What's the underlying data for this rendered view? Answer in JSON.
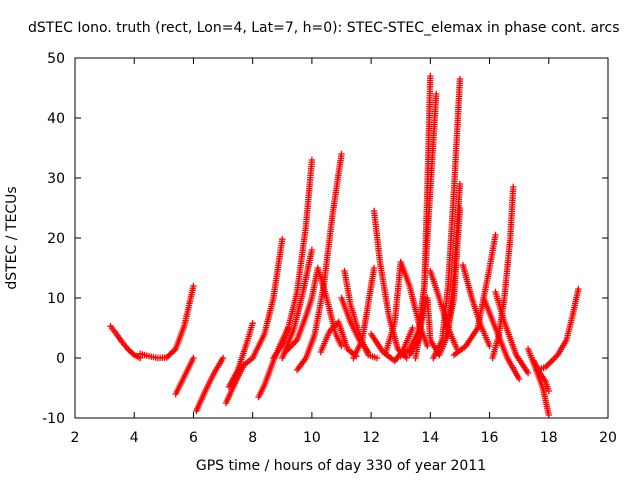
{
  "chart_data": {
    "type": "scatter",
    "title": "dSTEC Iono. truth (rect, Lon=4, Lat=7, h=0): STEC-STEC_elemax in phase cont. arcs",
    "xlabel": "GPS time / hours of day 330 of year 2011",
    "ylabel": "dSTEC  / TECUs",
    "xlim": [
      2,
      20
    ],
    "ylim": [
      -10,
      50
    ],
    "xticks": [
      2,
      4,
      6,
      8,
      10,
      12,
      14,
      16,
      18,
      20
    ],
    "yticks": [
      -10,
      0,
      10,
      20,
      30,
      40,
      50
    ],
    "grid": false,
    "marker": "+",
    "color": "#ff0000",
    "series": [
      {
        "points": [
          [
            3.2,
            5.3
          ],
          [
            3.4,
            4.0
          ],
          [
            3.6,
            2.6
          ],
          [
            3.8,
            1.4
          ],
          [
            4.0,
            0.5
          ],
          [
            4.2,
            0.0
          ]
        ]
      },
      {
        "points": [
          [
            4.2,
            0.7
          ],
          [
            4.5,
            0.3
          ],
          [
            4.8,
            0.0
          ],
          [
            5.1,
            0.1
          ],
          [
            5.4,
            1.5
          ],
          [
            5.7,
            5.5
          ],
          [
            6.0,
            12.0
          ]
        ]
      },
      {
        "points": [
          [
            5.4,
            -6.0
          ],
          [
            5.6,
            -4.0
          ],
          [
            5.8,
            -2.0
          ],
          [
            6.0,
            0.0
          ]
        ]
      },
      {
        "points": [
          [
            6.1,
            -8.8
          ],
          [
            6.4,
            -5.5
          ],
          [
            6.7,
            -2.5
          ],
          [
            7.0,
            0.0
          ]
        ]
      },
      {
        "points": [
          [
            7.1,
            -7.5
          ],
          [
            7.4,
            -4.2
          ],
          [
            7.7,
            -1.2
          ],
          [
            8.0,
            0.0
          ]
        ]
      },
      {
        "points": [
          [
            7.2,
            -4.8
          ],
          [
            7.5,
            -2.0
          ],
          [
            7.8,
            2.5
          ],
          [
            8.0,
            5.8
          ]
        ]
      },
      {
        "points": [
          [
            8.2,
            -6.5
          ],
          [
            8.4,
            -4.5
          ],
          [
            8.7,
            -0.5
          ],
          [
            9.0,
            3.0
          ],
          [
            9.2,
            5.0
          ]
        ]
      },
      {
        "points": [
          [
            8.0,
            0.0
          ],
          [
            8.4,
            4.0
          ],
          [
            8.7,
            10.0
          ],
          [
            9.0,
            19.8
          ]
        ]
      },
      {
        "points": [
          [
            8.7,
            0.0
          ],
          [
            9.1,
            3.0
          ],
          [
            9.5,
            11.0
          ],
          [
            9.8,
            22.0
          ],
          [
            10.0,
            33.0
          ]
        ]
      },
      {
        "points": [
          [
            9.0,
            0.0
          ],
          [
            9.4,
            5.0
          ],
          [
            9.7,
            11.0
          ],
          [
            10.0,
            18.0
          ]
        ]
      },
      {
        "points": [
          [
            9.1,
            1.0
          ],
          [
            9.5,
            3.0
          ],
          [
            9.8,
            7.0
          ],
          [
            10.0,
            10.0
          ],
          [
            10.2,
            15.0
          ],
          [
            10.5,
            10.0
          ],
          [
            10.8,
            4.0
          ],
          [
            11.0,
            2.0
          ]
        ]
      },
      {
        "points": [
          [
            9.5,
            -2.0
          ],
          [
            9.8,
            0.0
          ],
          [
            10.1,
            4.0
          ],
          [
            10.4,
            12.0
          ],
          [
            10.7,
            24.0
          ],
          [
            11.0,
            34.0
          ]
        ]
      },
      {
        "points": [
          [
            10.3,
            1.0
          ],
          [
            10.6,
            4.5
          ],
          [
            10.9,
            6.0
          ],
          [
            11.2,
            1.5
          ],
          [
            11.5,
            0.3
          ]
        ]
      },
      {
        "points": [
          [
            11.1,
            14.5
          ],
          [
            11.3,
            9.0
          ],
          [
            11.6,
            4.0
          ],
          [
            11.9,
            0.5
          ],
          [
            12.2,
            0.0
          ]
        ]
      },
      {
        "points": [
          [
            11.0,
            10.0
          ],
          [
            11.3,
            6.0
          ],
          [
            11.6,
            3.0
          ],
          [
            11.9,
            1.0
          ]
        ]
      },
      {
        "points": [
          [
            11.4,
            0.0
          ],
          [
            11.7,
            3.0
          ],
          [
            11.9,
            9.0
          ],
          [
            12.1,
            15.0
          ]
        ]
      },
      {
        "points": [
          [
            12.1,
            24.5
          ],
          [
            12.3,
            16.0
          ],
          [
            12.6,
            7.0
          ],
          [
            12.9,
            1.5
          ],
          [
            13.2,
            0.0
          ]
        ]
      },
      {
        "points": [
          [
            12.0,
            4.0
          ],
          [
            12.4,
            1.0
          ],
          [
            12.8,
            -0.5
          ],
          [
            13.1,
            1.5
          ],
          [
            13.4,
            5.0
          ]
        ]
      },
      {
        "points": [
          [
            12.5,
            1.0
          ],
          [
            12.8,
            6.0
          ],
          [
            13.0,
            16.0
          ],
          [
            13.3,
            12.0
          ],
          [
            13.6,
            6.0
          ],
          [
            13.9,
            2.0
          ]
        ]
      },
      {
        "points": [
          [
            13.0,
            0.3
          ],
          [
            13.3,
            1.5
          ],
          [
            13.6,
            4.5
          ],
          [
            13.8,
            12.0
          ],
          [
            14.0,
            28.0
          ],
          [
            14.2,
            44.0
          ]
        ]
      },
      {
        "points": [
          [
            13.3,
            0.5
          ],
          [
            13.6,
            3.0
          ],
          [
            13.8,
            12.0
          ],
          [
            13.9,
            28.0
          ],
          [
            14.0,
            47.0
          ]
        ]
      },
      {
        "points": [
          [
            13.5,
            0.0
          ],
          [
            13.7,
            6.0
          ],
          [
            13.9,
            10.0
          ],
          [
            14.0,
            3.0
          ],
          [
            14.3,
            0.5
          ]
        ]
      },
      {
        "points": [
          [
            14.0,
            14.5
          ],
          [
            14.3,
            10.0
          ],
          [
            14.6,
            5.0
          ],
          [
            14.9,
            1.5
          ]
        ]
      },
      {
        "points": [
          [
            14.1,
            0.0
          ],
          [
            14.4,
            3.0
          ],
          [
            14.6,
            12.0
          ],
          [
            14.8,
            28.0
          ],
          [
            15.0,
            46.5
          ]
        ]
      },
      {
        "points": [
          [
            14.3,
            0.5
          ],
          [
            14.6,
            4.0
          ],
          [
            14.8,
            14.0
          ],
          [
            15.0,
            29.0
          ]
        ]
      },
      {
        "points": [
          [
            14.5,
            3.0
          ],
          [
            14.8,
            10.0
          ],
          [
            14.9,
            18.0
          ],
          [
            15.0,
            25.0
          ]
        ]
      },
      {
        "points": [
          [
            15.1,
            15.5
          ],
          [
            15.4,
            10.0
          ],
          [
            15.7,
            5.5
          ],
          [
            16.0,
            2.0
          ]
        ]
      },
      {
        "points": [
          [
            14.8,
            0.5
          ],
          [
            15.2,
            2.0
          ],
          [
            15.6,
            5.0
          ],
          [
            16.0,
            15.0
          ],
          [
            16.2,
            20.5
          ]
        ]
      },
      {
        "points": [
          [
            16.2,
            11.0
          ],
          [
            16.5,
            6.0
          ],
          [
            16.9,
            0.5
          ],
          [
            17.3,
            -2.5
          ]
        ]
      },
      {
        "points": [
          [
            16.1,
            0.0
          ],
          [
            16.3,
            3.5
          ],
          [
            16.5,
            10.0
          ],
          [
            16.7,
            20.0
          ],
          [
            16.8,
            28.5
          ]
        ]
      },
      {
        "points": [
          [
            15.8,
            10.0
          ],
          [
            16.2,
            5.0
          ],
          [
            16.6,
            0.0
          ],
          [
            17.0,
            -3.5
          ]
        ]
      },
      {
        "points": [
          [
            17.3,
            1.5
          ],
          [
            17.5,
            -1.0
          ],
          [
            17.8,
            -5.0
          ],
          [
            18.0,
            -9.5
          ]
        ]
      },
      {
        "points": [
          [
            17.5,
            -0.5
          ],
          [
            17.7,
            -2.5
          ],
          [
            17.9,
            -4.0
          ],
          [
            18.0,
            -5.5
          ]
        ]
      },
      {
        "points": [
          [
            17.6,
            -2.0
          ],
          [
            17.9,
            -1.5
          ],
          [
            18.3,
            0.5
          ],
          [
            18.6,
            3.0
          ],
          [
            18.8,
            7.0
          ],
          [
            19.0,
            11.5
          ]
        ]
      }
    ]
  }
}
